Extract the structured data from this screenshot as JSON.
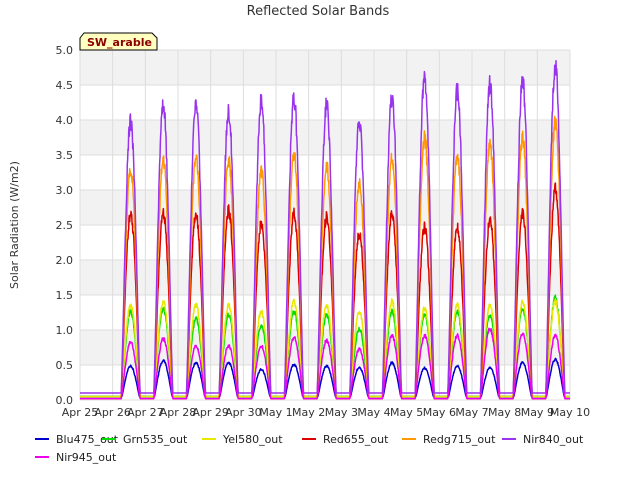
{
  "chart_data": {
    "type": "line",
    "title": "Reflected Solar Bands",
    "xlabel": "",
    "ylabel": "Solar Radiation (W/m2)",
    "ylim": [
      0,
      5.0
    ],
    "xlim": [
      "Apr 25",
      "May 10"
    ],
    "yticks": [
      "0.0",
      "0.5",
      "1.0",
      "1.5",
      "2.0",
      "2.5",
      "3.0",
      "3.5",
      "4.0",
      "4.5",
      "5.0"
    ],
    "xticks": [
      "Apr 25",
      "Apr 26",
      "Apr 27",
      "Apr 28",
      "Apr 29",
      "Apr 30",
      "May 1",
      "May 2",
      "May 3",
      "May 4",
      "May 5",
      "May 6",
      "May 7",
      "May 8",
      "May 9",
      "May 10"
    ],
    "grid": true,
    "legend_position": "bottom",
    "annotation": "SW_arable",
    "data_start": "Apr 25",
    "days": 15,
    "night_value_note": "near-zero at night",
    "series": [
      {
        "name": "Blu475_out",
        "color": "#0000cc",
        "night": 0.05,
        "peaks": [
          null,
          0.5,
          0.58,
          0.55,
          0.55,
          0.45,
          0.52,
          0.5,
          0.48,
          0.55,
          0.47,
          0.5,
          0.48,
          0.55,
          0.6
        ]
      },
      {
        "name": "Grn535_out",
        "color": "#00dd00",
        "night": 0.05,
        "peaks": [
          null,
          1.3,
          1.35,
          1.2,
          1.25,
          1.1,
          1.3,
          1.25,
          1.05,
          1.3,
          1.25,
          1.3,
          1.25,
          1.35,
          1.5
        ]
      },
      {
        "name": "Yel580_out",
        "color": "#e8e800",
        "night": 0.05,
        "peaks": [
          null,
          1.4,
          1.45,
          1.4,
          1.4,
          1.3,
          1.45,
          1.4,
          1.3,
          1.45,
          1.35,
          1.4,
          1.4,
          1.45,
          1.45
        ]
      },
      {
        "name": "Red655_out",
        "color": "#dd0000",
        "night": 0.02,
        "peaks": [
          null,
          2.75,
          2.75,
          2.75,
          2.8,
          2.6,
          2.75,
          2.7,
          2.45,
          2.75,
          2.55,
          2.55,
          2.65,
          2.75,
          3.1
        ]
      },
      {
        "name": "Redg715_out",
        "color": "#ff9900",
        "night": 0.02,
        "peaks": [
          null,
          3.4,
          3.55,
          3.55,
          3.55,
          3.4,
          3.6,
          3.45,
          3.2,
          3.55,
          3.85,
          3.6,
          3.75,
          3.85,
          4.1
        ]
      },
      {
        "name": "Nir840_out",
        "color": "#9933ee",
        "night": 0.1,
        "peaks": [
          null,
          4.1,
          4.35,
          4.35,
          4.25,
          4.4,
          4.45,
          4.35,
          4.1,
          4.45,
          4.75,
          4.55,
          4.65,
          4.7,
          4.9
        ]
      },
      {
        "name": "Nir945_out",
        "color": "#ee00ee",
        "night": 0.02,
        "peaks": [
          null,
          0.85,
          0.9,
          0.8,
          0.8,
          0.8,
          0.92,
          0.88,
          0.75,
          0.95,
          0.95,
          0.95,
          1.05,
          0.98,
          0.95
        ]
      }
    ]
  }
}
